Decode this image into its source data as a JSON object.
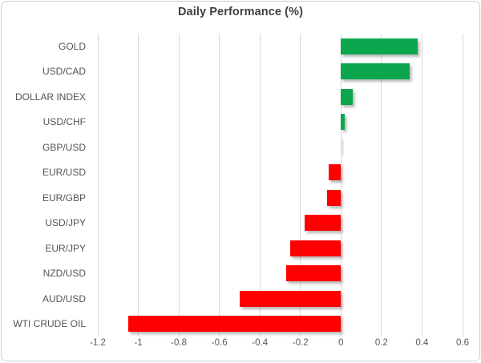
{
  "chart_data": {
    "type": "bar",
    "orientation": "horizontal",
    "title": "Daily Performance (%)",
    "categories": [
      "GOLD",
      "USD/CAD",
      "DOLLAR INDEX",
      "USD/CHF",
      "GBP/USD",
      "EUR/USD",
      "EUR/GBP",
      "USD/JPY",
      "EUR/JPY",
      "NZD/USD",
      "AUD/USD",
      "WTI CRUDE OIL"
    ],
    "values": [
      0.38,
      0.34,
      0.06,
      0.02,
      0.0,
      -0.06,
      -0.07,
      -0.18,
      -0.25,
      -0.27,
      -0.5,
      -1.05
    ],
    "xlabel": "",
    "ylabel": "",
    "xlim": [
      -1.2,
      0.6
    ],
    "xticks": [
      -1.2,
      -1,
      -0.8,
      -0.6,
      -0.4,
      -0.2,
      0,
      0.2,
      0.4,
      0.6
    ],
    "xtick_labels": [
      "-1.2",
      "-1",
      "-0.8",
      "-0.6",
      "-0.4",
      "-0.2",
      "0",
      "0.2",
      "0.4",
      "0.6"
    ],
    "grid": "vertical-on",
    "legend": "none",
    "colors": {
      "positive": "#0ca64f",
      "negative": "#fe0000",
      "gridline": "#d9d9d9",
      "title_text": "#3f3f3f",
      "axis_text": "#595959"
    }
  }
}
